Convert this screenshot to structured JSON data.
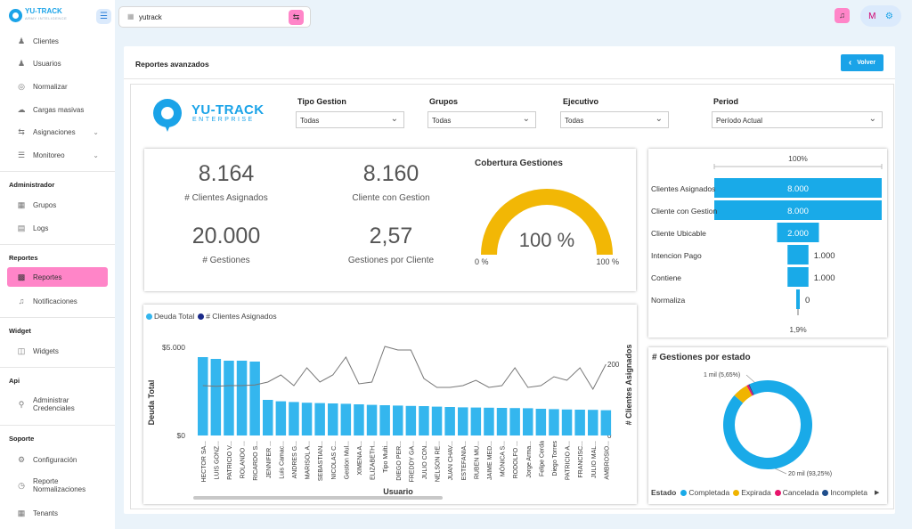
{
  "brand": {
    "name": "YU-TRACK",
    "tagline": "ARMY INTELIGENCE"
  },
  "sidebar": {
    "items": [
      {
        "label": "Clientes",
        "icon": "users-icon"
      },
      {
        "label": "Usuarios",
        "icon": "user-plus-icon"
      },
      {
        "label": "Normalizar",
        "icon": "location-icon"
      },
      {
        "label": "Cargas masivas",
        "icon": "cloud-upload-icon"
      },
      {
        "label": "Asignaciones",
        "icon": "swap-icon"
      },
      {
        "label": "Monitoreo",
        "icon": "list-icon"
      }
    ],
    "admin_title": "Administrador",
    "admin_items": [
      {
        "label": "Grupos"
      },
      {
        "label": "Logs"
      }
    ],
    "reportes_title": "Reportes",
    "reportes_items": [
      {
        "label": "Reportes"
      },
      {
        "label": "Notificaciones"
      }
    ],
    "widget_title": "Widget",
    "widget_items": [
      {
        "label": "Widgets"
      }
    ],
    "api_title": "Api",
    "api_items": [
      {
        "label": "Administrar Credenciales"
      }
    ],
    "soporte_title": "Soporte",
    "soporte_items": [
      {
        "label": "Configuración"
      },
      {
        "label": "Reporte Normalizaciones"
      },
      {
        "label": "Tenants"
      }
    ]
  },
  "topbar": {
    "search_value": "yutrack",
    "user_initial": "M"
  },
  "page": {
    "title": "Reportes avanzados",
    "back_label": "Volver"
  },
  "dashboard": {
    "logo": {
      "name": "YU-TRACK",
      "sub": "ENTERPRISE"
    },
    "filters": [
      {
        "label": "Tipo Gestion",
        "value": "Todas"
      },
      {
        "label": "Grupos",
        "value": "Todas"
      },
      {
        "label": "Ejecutivo",
        "value": "Todas"
      },
      {
        "label": "Period",
        "value": "Período Actual"
      }
    ],
    "kpis": [
      {
        "value": "8.164",
        "label": "# Clientes Asignados"
      },
      {
        "value": "8.160",
        "label": "Cliente con Gestion"
      },
      {
        "value": "20.000",
        "label": "# Gestiones"
      },
      {
        "value": "2,57",
        "label": "Gestiones por Cliente"
      }
    ],
    "gauge": {
      "title": "Cobertura Gestiones",
      "value": "100 %",
      "min": "0 %",
      "max": "100 %",
      "fraction": 1.0
    }
  },
  "chart_data": [
    {
      "type": "bar",
      "legend": [
        "Deuda Total",
        "# Clientes Asignados"
      ],
      "xlabel": "Usuario",
      "ylabel": "Deuda Total",
      "y2label": "# Clientes Asignados",
      "yticks": [
        "$5.000",
        "$0"
      ],
      "y2ticks": [
        "200",
        "0"
      ],
      "categories": [
        "HECTOR SA...",
        "LUIS GONZ...",
        "PATRICIO V...",
        "ROLANDO ...",
        "RICARDO S...",
        "JENNIFER ...",
        "Luis Camac...",
        "ANDRES G...",
        "MARISOL A...",
        "SEBASTIAN...",
        "NICOLAS C...",
        "Gestion Mul...",
        "XIMENA A...",
        "ELIZABETH...",
        "Tipo Multi...",
        "DIEGO PER...",
        "FREDDY GA...",
        "JULIO CON...",
        "NELSON RE...",
        "JUAN CHAV...",
        "ESTEFANIA...",
        "RUBEN MU...",
        "JAIME MED...",
        "MÓNICA S...",
        "RODOLFO ...",
        "Jorge Arma...",
        "Felipe Cerda",
        "Diego Torres",
        "PATRICIO A...",
        "FRANCISC...",
        "JULIO MAL...",
        "AMBROSIO..."
      ],
      "series": [
        {
          "name": "Deuda Total",
          "values": [
            4.4,
            4.3,
            4.2,
            4.2,
            4.15,
            2.0,
            1.92,
            1.88,
            1.84,
            1.82,
            1.8,
            1.78,
            1.75,
            1.72,
            1.7,
            1.68,
            1.66,
            1.65,
            1.62,
            1.6,
            1.58,
            1.57,
            1.56,
            1.55,
            1.54,
            1.53,
            1.5,
            1.48,
            1.46,
            1.45,
            1.44,
            1.42
          ]
        },
        {
          "name": "# Clientes Asignados",
          "values": [
            140,
            138,
            140,
            140,
            142,
            150,
            170,
            140,
            190,
            150,
            170,
            220,
            145,
            150,
            250,
            240,
            240,
            160,
            135,
            135,
            140,
            155,
            135,
            140,
            190,
            135,
            140,
            165,
            155,
            190,
            130,
            200
          ]
        }
      ],
      "ylim": [
        0,
        5
      ],
      "y2lim": [
        0,
        250
      ]
    },
    {
      "type": "bar",
      "subtype": "funnel",
      "top_label": "100%",
      "bottom_label": "1,9%",
      "categories": [
        "Clientes Asignados",
        "Cliente con Gestion",
        "Cliente Ubicable",
        "Intencion Pago",
        "Contiene",
        "Normaliza"
      ],
      "values": [
        8000,
        8000,
        2000,
        1000,
        1000,
        0
      ],
      "labels": [
        "8.000",
        "8.000",
        "2.000",
        "1.000",
        "1.000",
        "0"
      ]
    },
    {
      "type": "pie",
      "title": "# Gestiones por estado",
      "legend_title": "Estado",
      "slices": [
        {
          "name": "Completada",
          "value": 93.25,
          "label": "20 mil (93,25%)",
          "color": "#19aae8"
        },
        {
          "name": "Expirada",
          "value": 5.65,
          "label": "1 mil (5,65%)",
          "color": "#f0b400"
        },
        {
          "name": "Cancelada",
          "value": 0.7,
          "color": "#e8146c"
        },
        {
          "name": "Incompleta",
          "value": 0.4,
          "color": "#1f4e8c"
        }
      ]
    }
  ]
}
